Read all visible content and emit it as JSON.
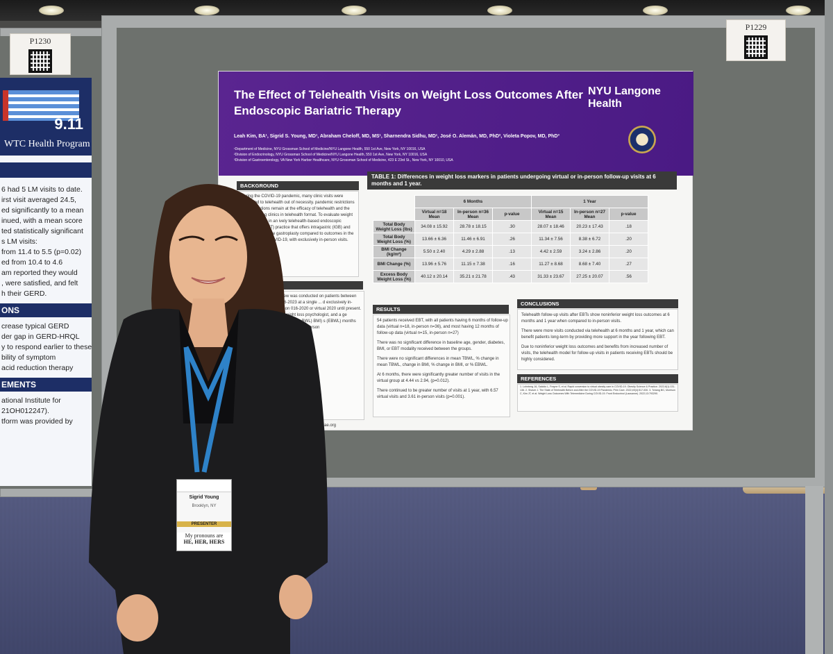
{
  "booth_left": {
    "code": "P1230"
  },
  "booth_right": {
    "code": "P1229"
  },
  "left_poster": {
    "number": "9.11",
    "program": "WTC Health Program",
    "lines": [
      "6 had 5 LM visits to date.",
      "irst visit averaged 24.5,",
      "",
      "ed significantly to a mean",
      "inued, with a mean score",
      "",
      "ted statistically significant",
      "s LM visits:",
      "from 11.4 to 5.5 (p=0.02)",
      "ed from 10.4 to 4.6",
      "",
      "am reported they would",
      ", were satisfied, and felt",
      "h their GERD."
    ],
    "section1": "ONS",
    "lines2": [
      "crease typical GERD",
      "",
      "der gap in GERD-HRQL",
      "y to respond earlier to these",
      "",
      "bility of symptom",
      "acid reduction therapy"
    ],
    "section2": "EMENTS",
    "lines3": [
      "ational Institute for",
      "21OH012247).",
      "tform was provided by"
    ]
  },
  "poster": {
    "title": "The Effect of Telehealth Visits on Weight Loss Outcomes After Endoscopic Bariatric Therapy",
    "logo": "NYU Langone Health",
    "authors": "Leah Kim, BA¹, Sigrid S. Young, MD¹, Abraham Cheloff, MD, MS¹, Sharnendra Sidhu, MD¹, José O. Alemán, MD, PhD², Violeta Popov, MD, PhD³",
    "affiliations": [
      "¹Department of Medicine, NYU Grossman School of Medicine/NYU Langone Health, 550 1st Ave, New York, NY 10016, USA",
      "²Division of Endocrinology, NYU Grossman School of Medicine/NYU Langone Health, 550 1st Ave, New York, NY 10016, USA",
      "³Division of Gastroenterology, VA New York Harbor Healthcare, NYU Grossman School of Medicine, 423 E 23rd St., New York, NY 10010, USA"
    ],
    "background_head": "BACKGROUND",
    "background_text": "During the COVID-19 pandemic, many clinic visits were converted to telehealth out of necessity. pandemic restrictions ease, questions remain at the efficacy of telehealth and the value of nuing clinics in telehealth format. To evaluate weight loss outcomes in an ively telehealth-based endoscopic bariatric ies (EBT) practice that offers intragastric (IGB) and endoscopic sleeve gastroplasty compared to outcomes in the same practice COVID-19, with exclusively in-person visits.",
    "methods_text": "review was conducted on patients between 2016-2023 at a single ... d exclusively in-person 016-2020 or virtual 2020 until present. dal weight loss psychologist, and a ge performed to BWL) BMI) s (EBWL) months and 1 year al in-person",
    "methods_url": "ae.org",
    "table_title": "TABLE 1: Differences in weight loss markers in patients undergoing virtual or in-person follow-up visits at 6 months and 1 year.",
    "table": {
      "group6": "6 Months",
      "group1y": "1 Year",
      "headers": [
        "Virtual n=18 Mean",
        "In-person n=36 Mean",
        "p-value",
        "Virtual n=15 Mean",
        "In-person n=27 Mean",
        "p-value"
      ],
      "rows": [
        {
          "label": "Total Body Weight Loss (lbs)",
          "cells": [
            "34.08 ± 15.92",
            "28.78 ± 18.15",
            ".30",
            "28.07 ± 18.46",
            "20.23 ± 17.43",
            ".18"
          ]
        },
        {
          "label": "Total Body Weight Loss (%)",
          "cells": [
            "13.66 ± 6.36",
            "11.46 ± 6.91",
            ".26",
            "11.34 ± 7.56",
            "8.38 ± 6.72",
            ".20"
          ]
        },
        {
          "label": "BMI Change (kg/m²)",
          "cells": [
            "5.50 ± 2.40",
            "4.29 ± 2.88",
            ".13",
            "4.42 ± 2.59",
            "3.24 ± 2.86",
            ".20"
          ]
        },
        {
          "label": "BMI Change (%)",
          "cells": [
            "13.96 ± 5.76",
            "11.15 ± 7.38",
            ".16",
            "11.27 ± 8.68",
            "8.68 ± 7.40",
            ".27"
          ]
        },
        {
          "label": "Excess Body Weight Loss (%)",
          "cells": [
            "40.12 ± 20.14",
            "35.21 ± 21.78",
            ".43",
            "31.33 ± 23.67",
            "27.25 ± 20.07",
            ".56"
          ]
        }
      ]
    },
    "results_head": "RESULTS",
    "results": [
      "54 patients received EBT, with all patients having 6 months of follow-up data (virtual n=18, in-person n=36), and most having 12 months of follow-up data (virtual n=15, in-person n=27)",
      "There was no significant difference in baseline age, gender, diabetes, BMI, or EBT modality received between the groups.",
      "There were no significant differences in mean TBWL, % change in mean TBWL, change in BMI, % change in BMI, or % EBWL.",
      "At 6 months, there were significantly greater number of visits in the virtual group at 4.44 vs 2.94, (p=0.012).",
      "There continued to be greater number of visits at 1 year, with 6.57 virtual visits and 3.61 in-person visits (p=0.001)."
    ],
    "conclusions_head": "CONCLUSIONS",
    "conclusions": [
      "Telehealth follow-up visits after EBTs show noninferior weight loss outcomes at 6 months and 1 year when compared to in-person visits.",
      "There were more visits conducted via telehealth at 6 months and 1 year, which can benefit patients long-term by providing more support in the year following EBT.",
      "Due to noninferior weight loss outcomes and benefits from increased number of visits, the telehealth model for follow-up visits in patients receiving EBTs should be highly considered."
    ],
    "references_head": "REFERENCES",
    "references": "1. Lohnberg JA, Salcido L, Frayne S, et al. Rapid conversion to virtual obesity care in COVID-19. Obesity Science & Practice. 2022;8(1):131-136. 2. Shaver J. The State of Telehealth Before and After the COVID-19 Pandemic. Prim Care. 2022;49(4):517-530. 3. Tchang BG, Morrison C, Kim JT, et al. Weight Loss Outcomes With Telemedicine During COVID-19. Front Endocrinol (Lausanne). 2022;13:793290."
  },
  "badge": {
    "name": "Sigrid Young",
    "location": "Brooklyn, NY",
    "ribbon": "PRESENTER",
    "pronouns": [
      "My pronouns are",
      "HE, HER, HERS"
    ]
  }
}
